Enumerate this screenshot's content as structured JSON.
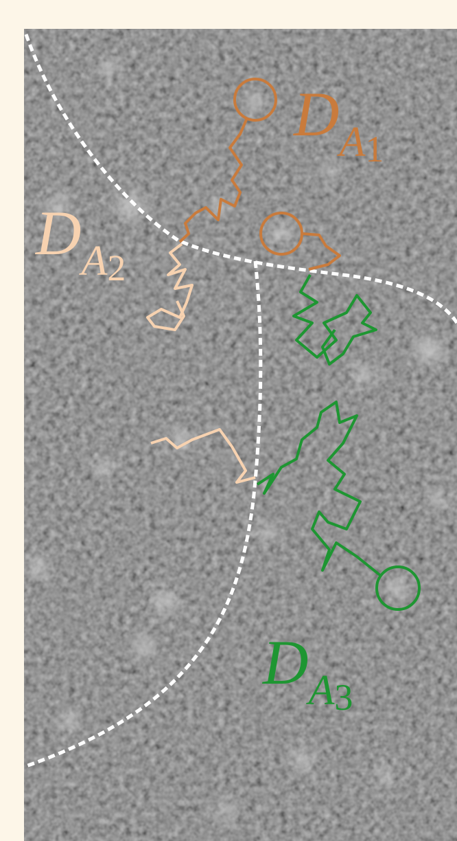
{
  "regions": [
    {
      "label": "D",
      "subscript": "A",
      "index": "1",
      "color": "#c97b3c"
    },
    {
      "label": "D",
      "subscript": "A",
      "index": "2",
      "color": "#f7d2b0"
    },
    {
      "label": "D",
      "subscript": "A",
      "index": "3",
      "color": "#1e9632"
    }
  ]
}
